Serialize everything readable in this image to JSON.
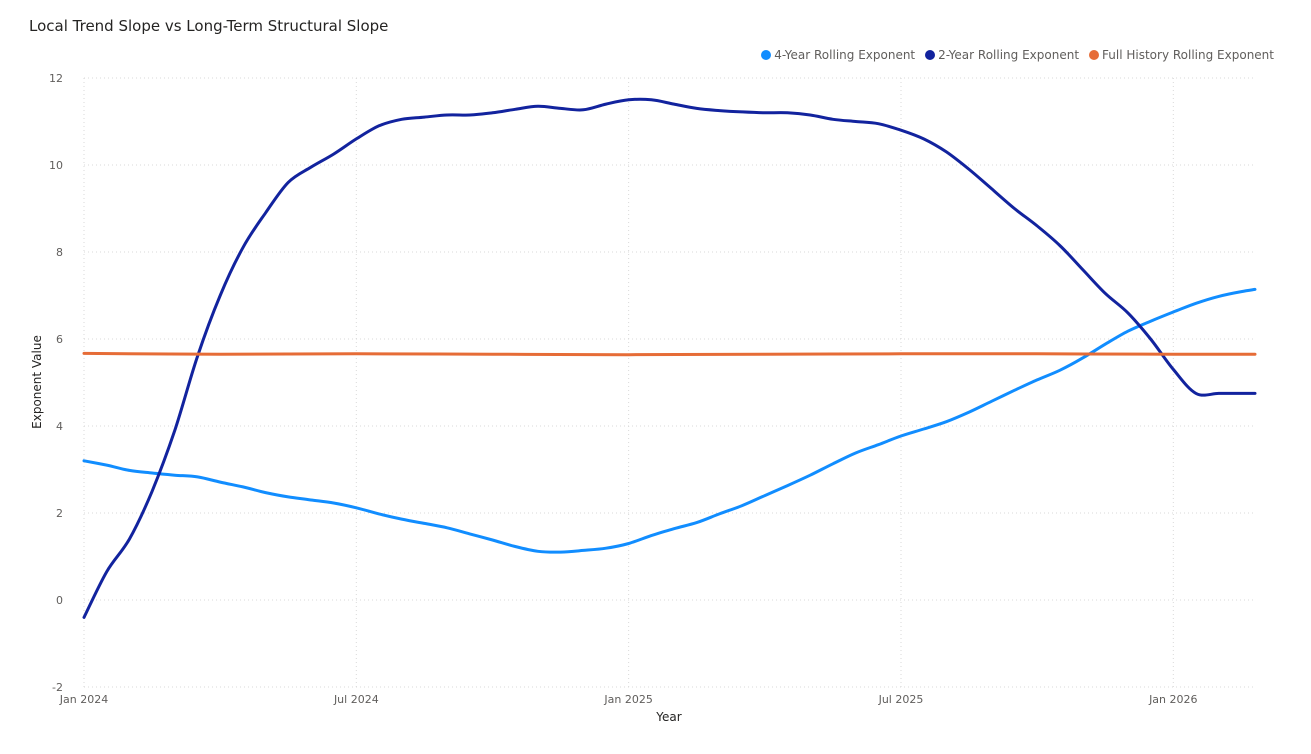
{
  "chart_data": {
    "type": "line",
    "title": "Local Trend Slope vs Long-Term Structural Slope",
    "xlabel": "Year",
    "ylabel": "Exponent Value",
    "ylim": [
      -2,
      12
    ],
    "y_ticks": [
      -2,
      0,
      2,
      4,
      6,
      8,
      10,
      12
    ],
    "x_ticks": [
      {
        "label": "Jan 2024",
        "t": 0
      },
      {
        "label": "Jul 2024",
        "t": 6
      },
      {
        "label": "Jan 2025",
        "t": 12
      },
      {
        "label": "Jul 2025",
        "t": 18
      },
      {
        "label": "Jan 2026",
        "t": 24
      }
    ],
    "xlim": [
      0,
      25.8
    ],
    "legend_position": "top-right",
    "grid": true,
    "series": [
      {
        "name": "4-Year Rolling Exponent",
        "color": "#118DFF",
        "t": [
          0,
          0.5,
          1,
          1.5,
          2,
          2.5,
          3,
          3.5,
          4,
          4.5,
          5,
          5.5,
          6,
          6.5,
          7,
          7.5,
          8,
          8.5,
          9,
          9.5,
          10,
          10.5,
          11,
          11.5,
          12,
          12.5,
          13,
          13.5,
          14,
          14.5,
          15,
          15.5,
          16,
          16.5,
          17,
          17.5,
          18,
          18.5,
          19,
          19.5,
          20,
          20.5,
          21,
          21.5,
          22,
          22.5,
          23,
          23.5,
          24,
          24.5,
          25,
          25.5,
          25.8
        ],
        "values": [
          3.2,
          3.1,
          2.98,
          2.92,
          2.87,
          2.83,
          2.71,
          2.6,
          2.47,
          2.37,
          2.3,
          2.23,
          2.12,
          1.98,
          1.86,
          1.76,
          1.66,
          1.52,
          1.38,
          1.23,
          1.12,
          1.1,
          1.14,
          1.19,
          1.3,
          1.48,
          1.64,
          1.78,
          1.98,
          2.17,
          2.4,
          2.63,
          2.87,
          3.13,
          3.38,
          3.57,
          3.77,
          3.93,
          4.1,
          4.32,
          4.57,
          4.82,
          5.06,
          5.28,
          5.56,
          5.88,
          6.18,
          6.41,
          6.62,
          6.82,
          6.98,
          7.09,
          7.14
        ]
      },
      {
        "name": "2-Year Rolling Exponent",
        "color": "#12239E",
        "t": [
          0,
          0.5,
          1,
          1.5,
          2,
          2.5,
          3,
          3.5,
          4,
          4.5,
          5,
          5.5,
          6,
          6.5,
          7,
          7.5,
          8,
          8.5,
          9,
          9.5,
          10,
          10.5,
          11,
          11.5,
          12,
          12.5,
          13,
          13.5,
          14,
          14.5,
          15,
          15.5,
          16,
          16.5,
          17,
          17.5,
          18,
          18.5,
          19,
          19.5,
          20,
          20.5,
          21,
          21.5,
          22,
          22.5,
          23,
          23.5,
          24,
          24.5,
          25,
          25.5,
          25.8
        ],
        "values": [
          -0.4,
          0.65,
          1.4,
          2.5,
          3.9,
          5.6,
          7.0,
          8.1,
          8.9,
          9.6,
          9.95,
          10.25,
          10.6,
          10.9,
          11.05,
          11.1,
          11.15,
          11.15,
          11.2,
          11.28,
          11.35,
          11.3,
          11.27,
          11.4,
          11.5,
          11.5,
          11.4,
          11.3,
          11.25,
          11.22,
          11.2,
          11.2,
          11.15,
          11.05,
          11.0,
          10.95,
          10.8,
          10.6,
          10.3,
          9.9,
          9.45,
          9.0,
          8.6,
          8.15,
          7.6,
          7.05,
          6.6,
          6.0,
          5.3,
          4.75,
          4.75,
          4.75,
          4.75
        ]
      },
      {
        "name": "Full History Rolling Exponent",
        "color": "#E66C37",
        "t": [
          0,
          3,
          6,
          9,
          12,
          15,
          18,
          21,
          24,
          25.8
        ],
        "values": [
          5.67,
          5.65,
          5.66,
          5.65,
          5.64,
          5.65,
          5.66,
          5.66,
          5.65,
          5.65
        ]
      }
    ]
  }
}
